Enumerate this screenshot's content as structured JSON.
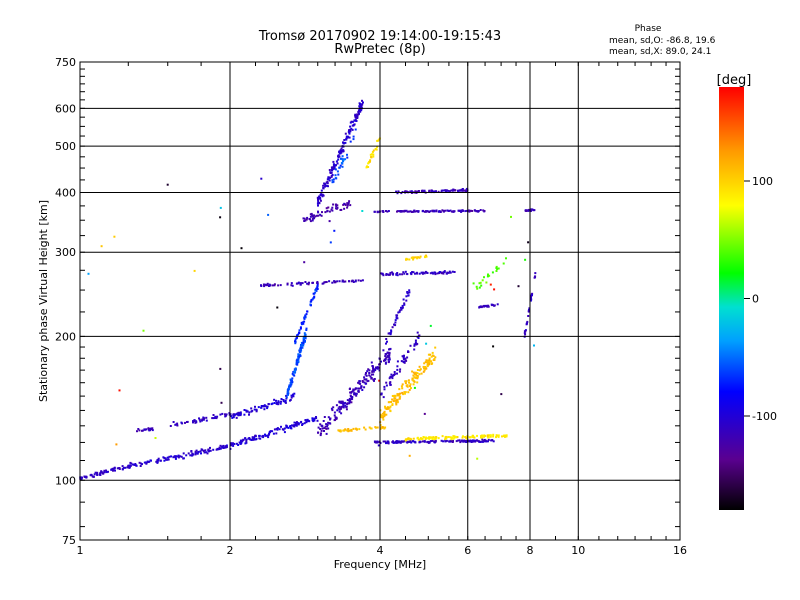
{
  "chart_data": {
    "type": "scatter",
    "title": "Tromsø 20170902 19:14:00-19:15:43",
    "subtitle": "RwPretec (8p)",
    "xlabel": "Frequency [MHz]",
    "ylabel": "Stationary phase Virtual Height [km]",
    "x_scale": "log2",
    "y_scale": "log",
    "xlim": [
      1,
      16
    ],
    "ylim": [
      75,
      750
    ],
    "x_ticks": [
      1,
      2,
      4,
      6,
      8,
      10,
      16
    ],
    "y_ticks": [
      75,
      100,
      200,
      300,
      400,
      500,
      600,
      750
    ],
    "grid": true,
    "phase_box": {
      "heading": "Phase",
      "line_o": "mean, sd,O: -86.8, 19.6",
      "line_x": "mean, sd,X: 89.0, 24.1"
    },
    "colorbar": {
      "label": "[deg]",
      "range": [
        -180,
        180
      ],
      "ticks": [
        "100",
        "0",
        "-100"
      ],
      "tick_values": [
        100,
        0,
        -100
      ]
    },
    "traces": [
      {
        "f_start": 1.0,
        "f_end": 1.25,
        "h_start": 101,
        "h_end": 107,
        "phase": -110,
        "n": 60,
        "spread": 0.014
      },
      {
        "f_start": 1.25,
        "f_end": 2.0,
        "h_start": 107,
        "h_end": 118,
        "phase": -105,
        "n": 120,
        "spread": 0.018
      },
      {
        "f_start": 2.0,
        "f_end": 3.0,
        "h_start": 118,
        "h_end": 135,
        "phase": -100,
        "n": 130,
        "spread": 0.022
      },
      {
        "f_start": 1.3,
        "f_end": 1.4,
        "h_start": 127,
        "h_end": 128,
        "phase": -115,
        "n": 20,
        "spread": 0.01
      },
      {
        "f_start": 1.5,
        "f_end": 2.1,
        "h_start": 130,
        "h_end": 138,
        "phase": -110,
        "n": 60,
        "spread": 0.018
      },
      {
        "f_start": 2.0,
        "f_end": 2.7,
        "h_start": 135,
        "h_end": 150,
        "phase": -100,
        "n": 70,
        "spread": 0.025
      },
      {
        "f_start": 2.6,
        "f_end": 2.85,
        "h_start": 150,
        "h_end": 205,
        "phase": -60,
        "n": 120,
        "spread": 0.03
      },
      {
        "f_start": 2.7,
        "f_end": 3.0,
        "h_start": 195,
        "h_end": 255,
        "phase": -70,
        "n": 50,
        "spread": 0.02
      },
      {
        "f_start": 2.3,
        "f_end": 3.7,
        "h_start": 255,
        "h_end": 262,
        "phase": -115,
        "n": 70,
        "spread": 0.012
      },
      {
        "f_start": 2.8,
        "f_end": 3.5,
        "h_start": 350,
        "h_end": 380,
        "phase": -120,
        "n": 60,
        "spread": 0.03
      },
      {
        "f_start": 3.0,
        "f_end": 3.7,
        "h_start": 380,
        "h_end": 620,
        "phase": -105,
        "n": 170,
        "spread": 0.04
      },
      {
        "f_start": 3.2,
        "f_end": 3.6,
        "h_start": 420,
        "h_end": 540,
        "phase": -60,
        "n": 30,
        "spread": 0.04
      },
      {
        "f_start": 3.75,
        "f_end": 4.0,
        "h_start": 450,
        "h_end": 520,
        "phase": 95,
        "n": 25,
        "spread": 0.03
      },
      {
        "f_start": 3.0,
        "f_end": 4.2,
        "h_start": 125,
        "h_end": 185,
        "phase": -115,
        "n": 200,
        "spread": 0.06
      },
      {
        "f_start": 3.3,
        "f_end": 4.1,
        "h_start": 127,
        "h_end": 129,
        "phase": 110,
        "n": 40,
        "spread": 0.01
      },
      {
        "f_start": 3.9,
        "f_end": 6.8,
        "h_start": 120,
        "h_end": 121,
        "phase": -110,
        "n": 160,
        "spread": 0.008
      },
      {
        "f_start": 4.5,
        "f_end": 7.2,
        "h_start": 122,
        "h_end": 124,
        "phase": 90,
        "n": 120,
        "spread": 0.01
      },
      {
        "f_start": 4.0,
        "f_end": 5.2,
        "h_start": 135,
        "h_end": 185,
        "phase": 110,
        "n": 160,
        "spread": 0.05
      },
      {
        "f_start": 4.0,
        "f_end": 4.8,
        "h_start": 150,
        "h_end": 200,
        "phase": -110,
        "n": 60,
        "spread": 0.05
      },
      {
        "f_start": 4.3,
        "f_end": 6.0,
        "h_start": 400,
        "h_end": 405,
        "phase": -115,
        "n": 90,
        "spread": 0.008
      },
      {
        "f_start": 3.9,
        "f_end": 6.5,
        "h_start": 365,
        "h_end": 366,
        "phase": -115,
        "n": 110,
        "spread": 0.006
      },
      {
        "f_start": 7.8,
        "f_end": 8.2,
        "h_start": 366,
        "h_end": 368,
        "phase": -115,
        "n": 18,
        "spread": 0.006
      },
      {
        "f_start": 4.0,
        "f_end": 5.8,
        "h_start": 270,
        "h_end": 272,
        "phase": -110,
        "n": 70,
        "spread": 0.01
      },
      {
        "f_start": 4.5,
        "f_end": 5.0,
        "h_start": 290,
        "h_end": 295,
        "phase": 100,
        "n": 20,
        "spread": 0.01
      },
      {
        "f_start": 4.1,
        "f_end": 4.6,
        "h_start": 195,
        "h_end": 250,
        "phase": -105,
        "n": 40,
        "spread": 0.03
      },
      {
        "f_start": 6.3,
        "f_end": 6.9,
        "h_start": 230,
        "h_end": 233,
        "phase": -110,
        "n": 22,
        "spread": 0.008
      },
      {
        "f_start": 7.8,
        "f_end": 8.2,
        "h_start": 200,
        "h_end": 270,
        "phase": -110,
        "n": 30,
        "spread": 0.02
      },
      {
        "f_start": 6.2,
        "f_end": 7.2,
        "h_start": 250,
        "h_end": 290,
        "phase": 40,
        "n": 20,
        "spread": 0.03
      }
    ]
  }
}
